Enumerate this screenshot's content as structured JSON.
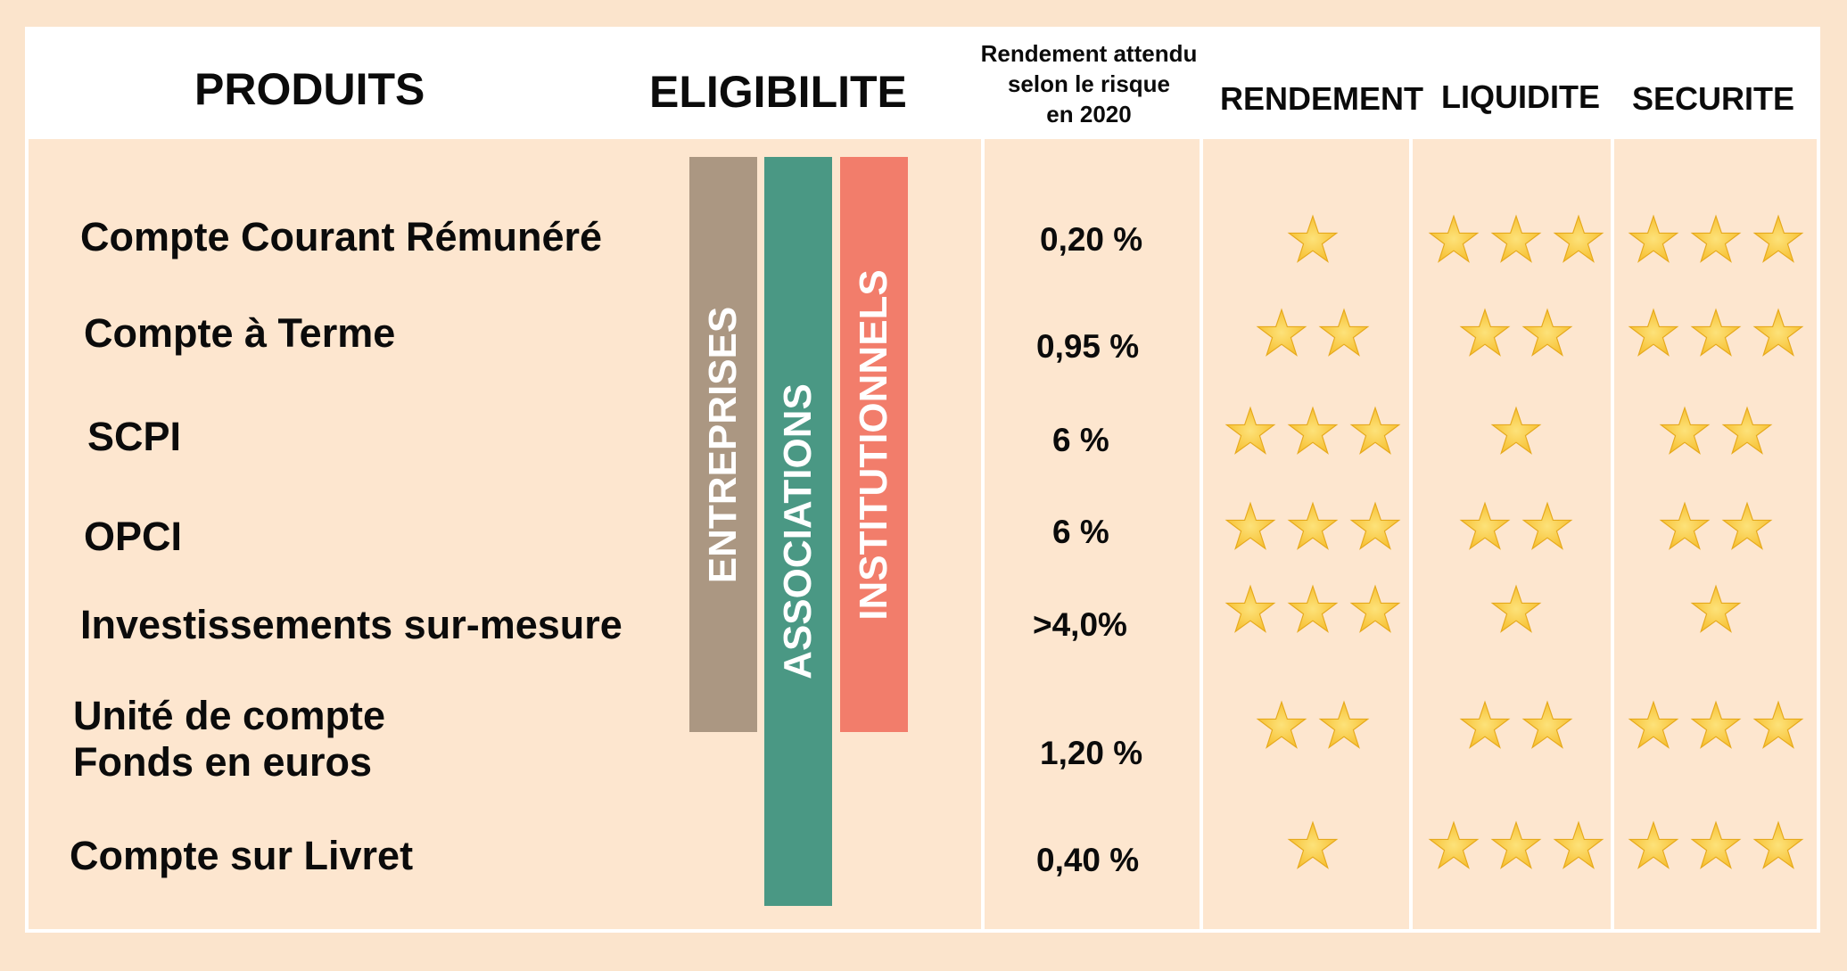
{
  "headers": {
    "produits": "PRODUITS",
    "eligibilite": "ELIGIBILITE",
    "rendement_attendu": [
      "Rendement attendu",
      "selon le risque",
      "en 2020"
    ],
    "rendement": "RENDEMENT",
    "liquidite": "LIQUIDITE",
    "securite": "SECURITE"
  },
  "eligibility": [
    {
      "label": "ENTREPRISES",
      "color": "#ab9782"
    },
    {
      "label": "ASSOCIATIONS",
      "color": "#4a9884"
    },
    {
      "label": "INSTITUTIONNELS",
      "color": "#f27d6b"
    }
  ],
  "products": [
    {
      "name": "Compte Courant Rémunéré",
      "rate": "0,20 %",
      "rendement": 1,
      "liquidite": 3,
      "securite": 3
    },
    {
      "name": "Compte à Terme",
      "rate": "0,95 %",
      "rendement": 2,
      "liquidite": 2,
      "securite": 3
    },
    {
      "name": "SCPI",
      "rate": "6 %",
      "rendement": 3,
      "liquidite": 1,
      "securite": 2
    },
    {
      "name": "OPCI",
      "rate": "6 %",
      "rendement": 3,
      "liquidite": 2,
      "securite": 2
    },
    {
      "name": "Investissements sur-mesure",
      "rate": ">4,0%",
      "rendement": 3,
      "liquidite": 1,
      "securite": 1
    },
    {
      "name": [
        "Unité de compte",
        "Fonds en euros"
      ],
      "rate": "1,20 %",
      "rendement": 2,
      "liquidite": 2,
      "securite": 3
    },
    {
      "name": "Compte sur Livret",
      "rate": "0,40 %",
      "rendement": 1,
      "liquidite": 3,
      "securite": 3
    }
  ],
  "colors": {
    "background": "#fbe4cc",
    "star_fill": "#f7c236",
    "star_center": "#fde27a"
  },
  "icons": {
    "rating": "star-icon"
  }
}
